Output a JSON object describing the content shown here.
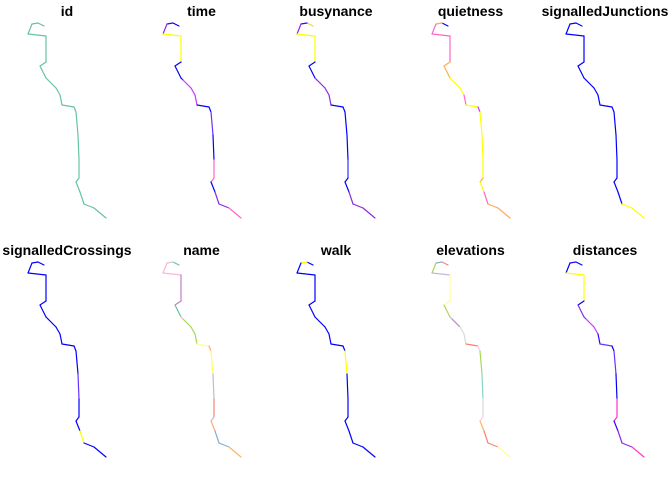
{
  "panels": [
    {
      "title": "id",
      "colors": [
        "#66c2a5",
        "#66c2a5",
        "#66c2a5",
        "#66c2a5",
        "#66c2a5",
        "#66c2a5",
        "#66c2a5",
        "#66c2a5",
        "#66c2a5",
        "#66c2a5",
        "#66c2a5",
        "#66c2a5",
        "#66c2a5",
        "#66c2a5",
        "#66c2a5",
        "#66c2a5",
        "#66c2a5",
        "#66c2a5",
        "#66c2a5",
        "#66c2a5",
        "#66c2a5"
      ]
    },
    {
      "title": "time",
      "colors": [
        "#0000ff",
        "#3300ff",
        "#8a2be2",
        "#ffff00",
        "#ffff00",
        "#0000ff",
        "#0000ff",
        "#0000ff",
        "#cc33ff",
        "#cc33ff",
        "#cc33ff",
        "#0000ff",
        "#0000ff",
        "#6633ff",
        "#0000ff",
        "#ff66cc",
        "#ff66cc",
        "#0000ff",
        "#8a2be2",
        "#8a2be2",
        "#ff66cc"
      ]
    },
    {
      "title": "busynance",
      "colors": [
        "#ffcc33",
        "#3300ff",
        "#8a2be2",
        "#ffff00",
        "#ffff00",
        "#0000ff",
        "#0000ff",
        "#6633ff",
        "#8a2be2",
        "#8a2be2",
        "#8a2be2",
        "#0000ff",
        "#0000ff",
        "#0000ff",
        "#0000ff",
        "#3333ff",
        "#0000ff",
        "#0000ff",
        "#8a2be2",
        "#8a2be2",
        "#8a2be2"
      ]
    },
    {
      "title": "quietness",
      "colors": [
        "#0000ff",
        "#ffaa55",
        "#ff66cc",
        "#ff66cc",
        "#ff66cc",
        "#ffaa55",
        "#ffaa55",
        "#ffff00",
        "#ffff00",
        "#ffff00",
        "#ff66cc",
        "#ffff00",
        "#cc33ff",
        "#ffff00",
        "#ffff00",
        "#ffff00",
        "#ffaa55",
        "#ffff00",
        "#ff66cc",
        "#ffaa55",
        "#ffaa55"
      ]
    },
    {
      "title": "signalledJunctions",
      "colors": [
        "#0000ff",
        "#0000ff",
        "#0000ff",
        "#0000ff",
        "#0000ff",
        "#0000ff",
        "#0000ff",
        "#0000ff",
        "#0000ff",
        "#0000ff",
        "#0000ff",
        "#0000ff",
        "#0000ff",
        "#0000ff",
        "#0000ff",
        "#0000ff",
        "#0000ff",
        "#0000ff",
        "#0000ff",
        "#ffff00",
        "#ffff00"
      ]
    },
    {
      "title": "signalledCrossings",
      "colors": [
        "#0000ff",
        "#0000ff",
        "#0000ff",
        "#0000ff",
        "#0000ff",
        "#0000ff",
        "#0000ff",
        "#0000ff",
        "#0000ff",
        "#0000ff",
        "#0000ff",
        "#0000ff",
        "#0000ff",
        "#0000ff",
        "#6633ff",
        "#0000ff",
        "#0000ff",
        "#0000ff",
        "#ffff00",
        "#0000ff",
        "#0000ff"
      ]
    },
    {
      "title": "name",
      "colors": [
        "#66c2a5",
        "#cccccc",
        "#ffb3d9",
        "#ffb3d9",
        "#c080c0",
        "#c080c0",
        "#66c2a5",
        "#ffb3d9",
        "#a6d854",
        "#a6d854",
        "#a6d854",
        "#ffff99",
        "#ffaa77",
        "#ffff66",
        "#bebada",
        "#fb8072",
        "#bebada",
        "#ffaa77",
        "#80b1d3",
        "#80b1d3",
        "#fdb462"
      ]
    },
    {
      "title": "walk",
      "colors": [
        "#0000ff",
        "#ffff00",
        "#0000ff",
        "#0000ff",
        "#0000ff",
        "#0000ff",
        "#0000ff",
        "#0000ff",
        "#0000ff",
        "#0000ff",
        "#0000ff",
        "#0000ff",
        "#0000ff",
        "#ffff00",
        "#0000ff",
        "#0000ff",
        "#0000ff",
        "#0000ff",
        "#0000ff",
        "#0000ff",
        "#0000ff"
      ]
    },
    {
      "title": "elevations",
      "colors": [
        "#fb8072",
        "#80b1d3",
        "#a6d854",
        "#bebada",
        "#ffff99",
        "#ffff99",
        "#a6d854",
        "#bebada",
        "#c080c0",
        "#d9d9d9",
        "#d9d9d9",
        "#fb8072",
        "#ffccee",
        "#a6d854",
        "#8dd3c7",
        "#d9d9d9",
        "#ffccee",
        "#fdb462",
        "#fb8072",
        "#fb8072",
        "#ffff99"
      ]
    },
    {
      "title": "distances",
      "colors": [
        "#0000ff",
        "#3300ff",
        "#0000ff",
        "#ffff00",
        "#ffff00",
        "#0000ff",
        "#8a2be2",
        "#6633ff",
        "#cc33ff",
        "#cc33ff",
        "#3300ff",
        "#6633ff",
        "#0000ff",
        "#6633ff",
        "#0000ff",
        "#ff33cc",
        "#ff33cc",
        "#3300ff",
        "#8a2be2",
        "#8a2be2",
        "#ff33cc"
      ]
    }
  ]
}
